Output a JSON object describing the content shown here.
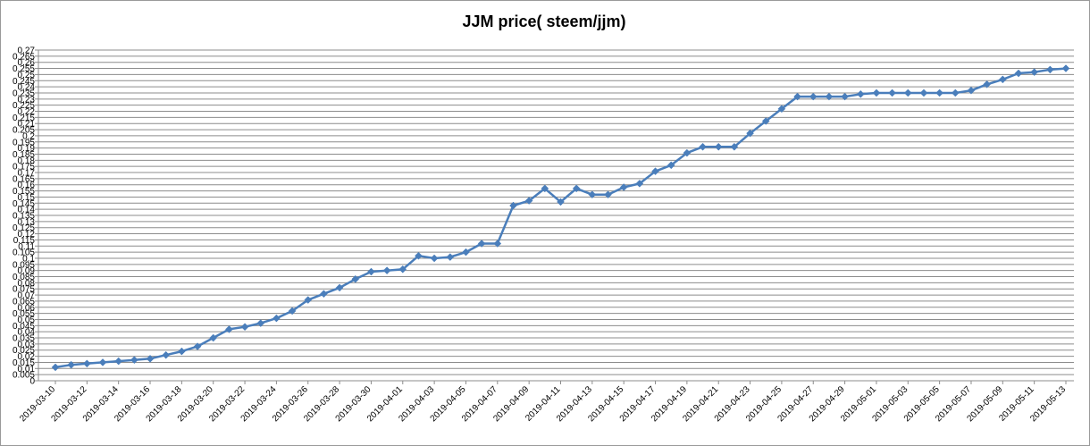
{
  "chart_data": {
    "type": "line",
    "title": "JJM price( steem/jjm)",
    "xlabel": "",
    "ylabel": "",
    "ylim": [
      0,
      0.27
    ],
    "y_ticks": [
      "0",
      "0.005",
      "0.01",
      "0.015",
      "0.02",
      "0.025",
      "0.03",
      "0.035",
      "0.04",
      "0.045",
      "0.05",
      "0.055",
      "0.06",
      "0.065",
      "0.07",
      "0.075",
      "0.08",
      "0.085",
      "0.09",
      "0.095",
      "0.1",
      "0.105",
      "0.11",
      "0.115",
      "0.12",
      "0.125",
      "0.13",
      "0.135",
      "0.14",
      "0.145",
      "0.15",
      "0.155",
      "0.16",
      "0.165",
      "0.17",
      "0.175",
      "0.18",
      "0.185",
      "0.19",
      "0.195",
      "0.2",
      "0.205",
      "0.21",
      "0.215",
      "0.22",
      "0.225",
      "0.23",
      "0.235",
      "0.24",
      "0.245",
      "0.25",
      "0.255",
      "0.26",
      "0.265",
      "0.27"
    ],
    "x_tick_labels": [
      "2019-03-10",
      "2019-03-12",
      "2019-03-14",
      "2019-03-16",
      "2019-03-18",
      "2019-03-20",
      "2019-03-22",
      "2019-03-24",
      "2019-03-26",
      "2019-03-28",
      "2019-03-30",
      "2019-04-01",
      "2019-04-03",
      "2019-04-05",
      "2019-04-07",
      "2019-04-09",
      "2019-04-11",
      "2019-04-13",
      "2019-04-15",
      "2019-04-17",
      "2019-04-19",
      "2019-04-21",
      "2019-04-23",
      "2019-04-25",
      "2019-04-27",
      "2019-04-29",
      "2019-05-01",
      "2019-05-03",
      "2019-05-05",
      "2019-05-07",
      "2019-05-09",
      "2019-05-11",
      "2019-05-13"
    ],
    "grid": true,
    "legend": "none",
    "series_color": "#4a7ebb",
    "series": [
      {
        "values": [
          0.011,
          0.013,
          0.014,
          0.015,
          0.016,
          0.017,
          0.018,
          0.021,
          0.024,
          0.028,
          0.035,
          0.042,
          0.044,
          0.047,
          0.051,
          0.057,
          0.066,
          0.071,
          0.076,
          0.083,
          0.089,
          0.09,
          0.091,
          0.102,
          0.1,
          0.101,
          0.105,
          0.112,
          0.112,
          0.143,
          0.147,
          0.157,
          0.146,
          0.157,
          0.152,
          0.152,
          0.158,
          0.161,
          0.171,
          0.176,
          0.186,
          0.191,
          0.191,
          0.191,
          0.202,
          0.212,
          0.222,
          0.232,
          0.232,
          0.232,
          0.232,
          0.234,
          0.235,
          0.235,
          0.235,
          0.235,
          0.235,
          0.235,
          0.237,
          0.242,
          0.246,
          0.251,
          0.252,
          0.254,
          0.255
        ]
      }
    ]
  }
}
